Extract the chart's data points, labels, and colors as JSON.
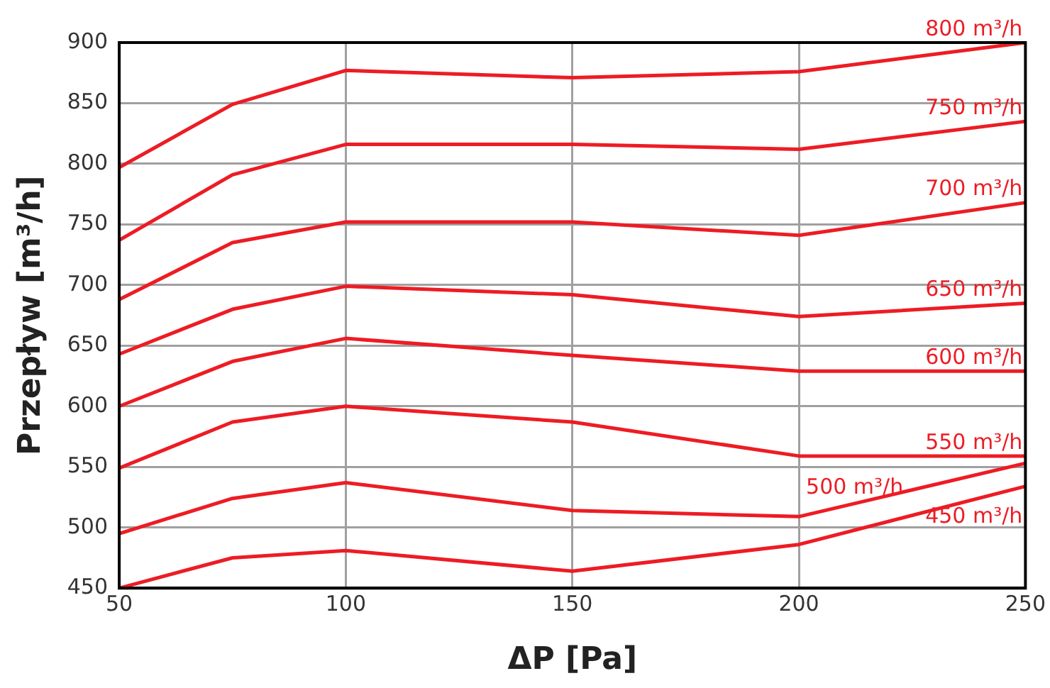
{
  "chart_data": {
    "type": "line",
    "xlabel": "ΔP [Pa]",
    "ylabel": "Przepływ [m³/h]",
    "x": [
      50,
      75,
      100,
      150,
      200,
      250
    ],
    "xlim": [
      50,
      250
    ],
    "xticks": [
      50,
      100,
      150,
      200,
      250
    ],
    "ylim": [
      450,
      900
    ],
    "yticks": [
      450,
      500,
      550,
      600,
      650,
      700,
      750,
      800,
      850,
      900
    ],
    "grid": true,
    "legend": false,
    "marker": "none",
    "line_style": "solid",
    "series": [
      {
        "name": "800 m³/h",
        "color": "#ed1c24",
        "values": [
          797,
          849,
          877,
          871,
          876,
          900
        ]
      },
      {
        "name": "750 m³/h",
        "color": "#ed1c24",
        "values": [
          737,
          791,
          816,
          816,
          812,
          835
        ]
      },
      {
        "name": "700 m³/h",
        "color": "#ed1c24",
        "values": [
          688,
          735,
          752,
          752,
          741,
          768
        ]
      },
      {
        "name": "650 m³/h",
        "color": "#ed1c24",
        "values": [
          643,
          680,
          699,
          692,
          674,
          685
        ]
      },
      {
        "name": "600 m³/h",
        "color": "#ed1c24",
        "values": [
          600,
          637,
          656,
          642,
          629,
          629
        ]
      },
      {
        "name": "550 m³/h",
        "color": "#ed1c24",
        "values": [
          549,
          587,
          600,
          587,
          559,
          559
        ]
      },
      {
        "name": "500 m³/h",
        "color": "#ed1c24",
        "values": [
          495,
          524,
          537,
          514,
          509,
          553
        ]
      },
      {
        "name": "450 m³/h",
        "color": "#ed1c24",
        "values": [
          450,
          475,
          481,
          464,
          486,
          534
        ]
      }
    ]
  }
}
